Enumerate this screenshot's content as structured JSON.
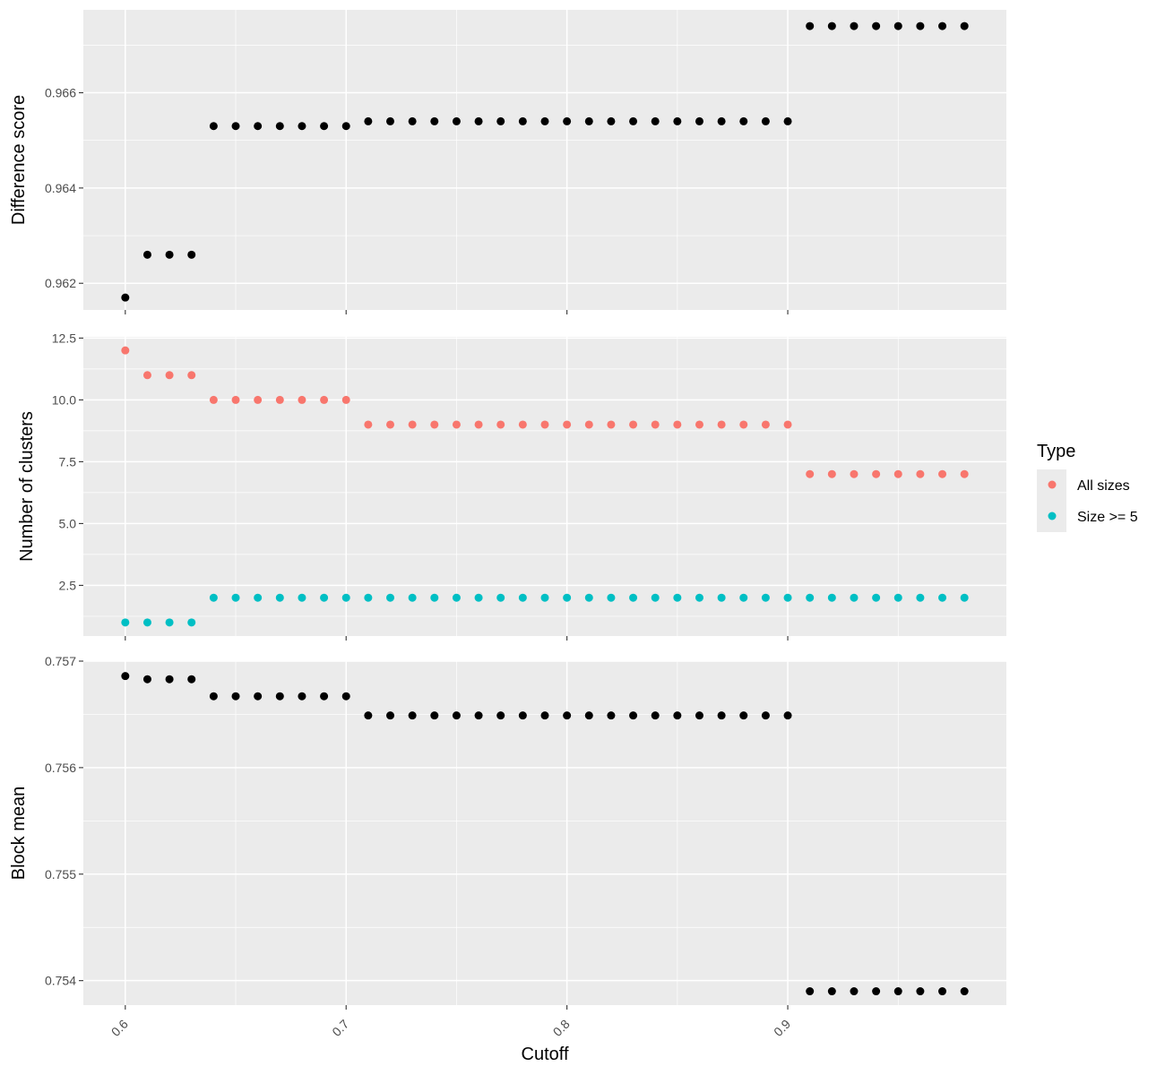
{
  "chart_data": {
    "type": "scatter",
    "xlabel": "Cutoff",
    "x_ticks": [
      "0.6",
      "0.7",
      "0.8",
      "0.9"
    ],
    "x": [
      0.6,
      0.61,
      0.62,
      0.63,
      0.64,
      0.65,
      0.66,
      0.67,
      0.68,
      0.69,
      0.7,
      0.71,
      0.72,
      0.73,
      0.74,
      0.75,
      0.76,
      0.77,
      0.78,
      0.79,
      0.8,
      0.81,
      0.82,
      0.83,
      0.84,
      0.85,
      0.86,
      0.87,
      0.88,
      0.89,
      0.9,
      0.91,
      0.92,
      0.93,
      0.94,
      0.95,
      0.96,
      0.97,
      0.98
    ],
    "xlim": [
      0.581,
      0.999
    ],
    "grid": true,
    "panels": [
      {
        "ylabel": "Difference score",
        "ylim": [
          0.96144,
          0.96774
        ],
        "y_ticks": [
          "0.962",
          "0.964",
          "0.966"
        ],
        "series": [
          {
            "color": "#000000",
            "values": [
              0.9617,
              0.9626,
              0.9626,
              0.9626,
              0.9653,
              0.9653,
              0.9653,
              0.9653,
              0.9653,
              0.9653,
              0.9653,
              0.9654,
              0.9654,
              0.9654,
              0.9654,
              0.9654,
              0.9654,
              0.9654,
              0.9654,
              0.9654,
              0.9654,
              0.9654,
              0.9654,
              0.9654,
              0.9654,
              0.9654,
              0.9654,
              0.9654,
              0.9654,
              0.9654,
              0.9654,
              0.9674,
              0.9674,
              0.9674,
              0.9674,
              0.9674,
              0.9674,
              0.9674,
              0.9674
            ]
          }
        ]
      },
      {
        "ylabel": "Number of clusters",
        "ylim": [
          0.45,
          12.55
        ],
        "y_ticks": [
          "2.5",
          "5.0",
          "7.5",
          "10.0",
          "12.5"
        ],
        "series": [
          {
            "name": "All sizes",
            "color": "#F8766D",
            "values": [
              12,
              11,
              11,
              11,
              10,
              10,
              10,
              10,
              10,
              10,
              10,
              9,
              9,
              9,
              9,
              9,
              9,
              9,
              9,
              9,
              9,
              9,
              9,
              9,
              9,
              9,
              9,
              9,
              9,
              9,
              9,
              7,
              7,
              7,
              7,
              7,
              7,
              7,
              7
            ]
          },
          {
            "name": "Size >= 5",
            "color": "#00BFC4",
            "values": [
              1,
              1,
              1,
              1,
              2,
              2,
              2,
              2,
              2,
              2,
              2,
              2,
              2,
              2,
              2,
              2,
              2,
              2,
              2,
              2,
              2,
              2,
              2,
              2,
              2,
              2,
              2,
              2,
              2,
              2,
              2,
              2,
              2,
              2,
              2,
              2,
              2,
              2,
              2
            ]
          }
        ]
      },
      {
        "ylabel": "Block mean",
        "ylim": [
          0.75377,
          0.757
        ],
        "y_ticks": [
          "0.754",
          "0.755",
          "0.756",
          "0.757"
        ],
        "series": [
          {
            "color": "#000000",
            "values": [
              0.75686,
              0.75683,
              0.75683,
              0.75683,
              0.75667,
              0.75667,
              0.75667,
              0.75667,
              0.75667,
              0.75667,
              0.75667,
              0.75649,
              0.75649,
              0.75649,
              0.75649,
              0.75649,
              0.75649,
              0.75649,
              0.75649,
              0.75649,
              0.75649,
              0.75649,
              0.75649,
              0.75649,
              0.75649,
              0.75649,
              0.75649,
              0.75649,
              0.75649,
              0.75649,
              0.75649,
              0.7539,
              0.7539,
              0.7539,
              0.7539,
              0.7539,
              0.7539,
              0.7539,
              0.7539
            ]
          }
        ]
      }
    ],
    "legend": {
      "title": "Type",
      "placement": "right",
      "items": [
        {
          "label": "All sizes",
          "color": "#F8766D"
        },
        {
          "label": "Size >= 5",
          "color": "#00BFC4"
        }
      ]
    }
  }
}
